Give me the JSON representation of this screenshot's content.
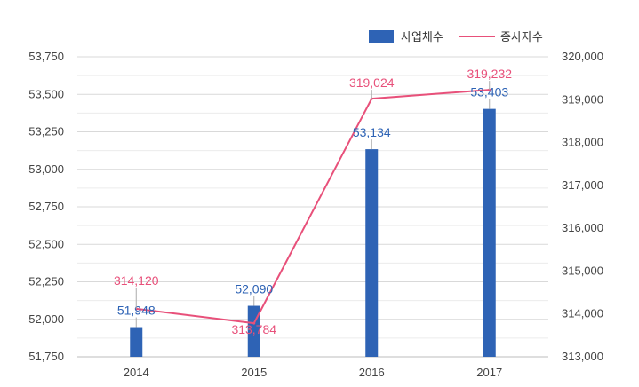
{
  "chart_data": {
    "type": "bar+line",
    "categories": [
      "2014",
      "2015",
      "2016",
      "2017"
    ],
    "series": [
      {
        "name": "사업체수",
        "type": "bar",
        "axis": "left",
        "color": "#2e63b5",
        "values": [
          51948,
          52090,
          53134,
          53403
        ],
        "labels": [
          "51,948",
          "52,090",
          "53,134",
          "53,403"
        ]
      },
      {
        "name": "종사자수",
        "type": "line",
        "axis": "right",
        "color": "#e8507a",
        "values": [
          314120,
          313784,
          319024,
          319232
        ],
        "labels": [
          "314,120",
          "313,784",
          "319,024",
          "319,232"
        ]
      }
    ],
    "y_left": {
      "min": 51750,
      "max": 53750,
      "step": 250,
      "ticks": [
        "51,750",
        "52,000",
        "52,250",
        "52,500",
        "52,750",
        "53,000",
        "53,250",
        "53,500",
        "53,750"
      ]
    },
    "y_right": {
      "min": 313000,
      "max": 320000,
      "step": 1000,
      "ticks": [
        "313,000",
        "314,000",
        "315,000",
        "316,000",
        "317,000",
        "318,000",
        "319,000",
        "320,000"
      ]
    },
    "legend": {
      "position": "top-right",
      "items": [
        "사업체수",
        "종사자수"
      ]
    },
    "grid": true
  }
}
